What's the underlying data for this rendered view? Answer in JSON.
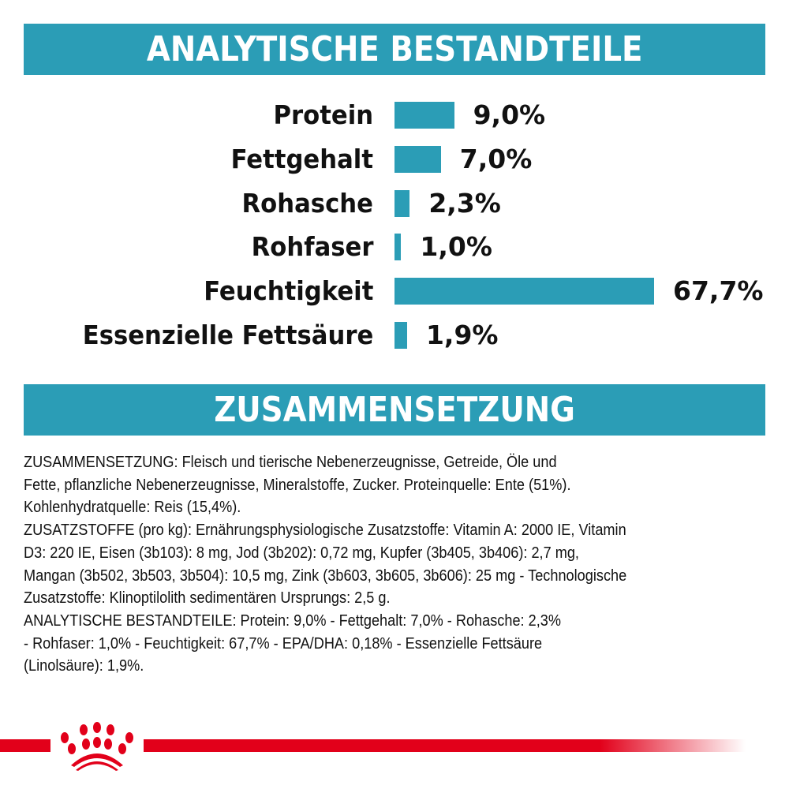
{
  "headers": {
    "analysis": "ANALYTISCHE BESTANDTEILE",
    "composition": "ZUSAMMENSETZUNG"
  },
  "colors": {
    "accent": "#2b9db6",
    "brand_red": "#e2001a"
  },
  "chart_data": {
    "type": "bar",
    "orientation": "horizontal",
    "categories": [
      "Protein",
      "Fettgehalt",
      "Rohasche",
      "Rohfaser",
      "Feuchtigkeit",
      "Essenzielle Fettsäure"
    ],
    "values": [
      9.0,
      7.0,
      2.3,
      1.0,
      67.7,
      1.9
    ],
    "value_labels": [
      "9,0%",
      "7,0%",
      "2,3%",
      "1,0%",
      "67,7%",
      "1,9%"
    ],
    "unit": "%"
  },
  "composition_lines": [
    "ZUSAMMENSETZUNG: Fleisch und tierische Nebenerzeugnisse, Getreide, Öle und",
    "Fette, pflanzliche Nebenerzeugnisse, Mineralstoffe, Zucker. Proteinquelle: Ente (51%).",
    "Kohlenhydratquelle: Reis (15,4%).",
    "ZUSATZSTOFFE (pro kg): Ernährungsphysiologische Zusatzstoffe: Vitamin A: 2000 IE, Vitamin",
    "D3: 220 IE, Eisen (3b103): 8 mg, Jod (3b202): 0,72 mg, Kupfer (3b405, 3b406): 2,7 mg,",
    "Mangan (3b502, 3b503, 3b504): 10,5 mg, Zink (3b603, 3b605, 3b606): 25 mg - Technologische",
    "Zusatzstoffe: Klinoptilolith sedimentären Ursprungs: 2,5 g.",
    "ANALYTISCHE BESTANDTEILE: Protein: 9,0% - Fettgehalt: 7,0% - Rohasche: 2,3%",
    "- Rohfaser: 1,0% - Feuchtigkeit: 67,7% - EPA/DHA: 0,18% - Essenzielle Fettsäure",
    "(Linolsäure): 1,9%."
  ],
  "logo": "royal-canin-crown-icon"
}
